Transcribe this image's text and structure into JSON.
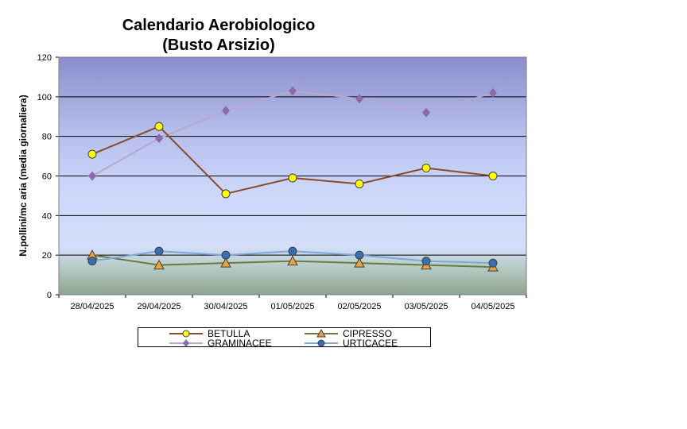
{
  "chart_data": {
    "type": "line",
    "title": "Calendario Aerobiologico\n(Busto Arsizio)",
    "ylabel": "N.pollini/mc aria (media giornaliera)",
    "xlabel": "",
    "ylim": [
      0,
      120
    ],
    "yticks": [
      0,
      20,
      40,
      60,
      80,
      100,
      120
    ],
    "grid": true,
    "legend_position": "bottom",
    "categories": [
      "28/04/2025",
      "29/04/2025",
      "30/04/2025",
      "01/05/2025",
      "02/05/2025",
      "03/05/2025",
      "04/05/2025"
    ],
    "series": [
      {
        "name": "BETULLA",
        "values": [
          71,
          85,
          51,
          59,
          56,
          64,
          60
        ],
        "color": "#8B4A2B",
        "marker": "circle",
        "marker_color": "#FFFF00"
      },
      {
        "name": "CIPRESSO",
        "values": [
          20,
          15,
          16,
          17,
          16,
          15,
          14
        ],
        "color": "#6B7B3A",
        "marker": "triangle",
        "marker_color": "#E8A040"
      },
      {
        "name": "GRAMINACEE",
        "values": [
          60,
          79,
          93,
          103,
          99,
          92,
          102
        ],
        "color": "#B8A8D0",
        "marker": "diamond",
        "marker_color": "#8A6AA8"
      },
      {
        "name": "URTICACEE",
        "values": [
          17,
          22,
          20,
          22,
          20,
          17,
          16
        ],
        "color": "#7FA8DC",
        "marker": "circle",
        "marker_color": "#3A6EB0"
      }
    ]
  }
}
